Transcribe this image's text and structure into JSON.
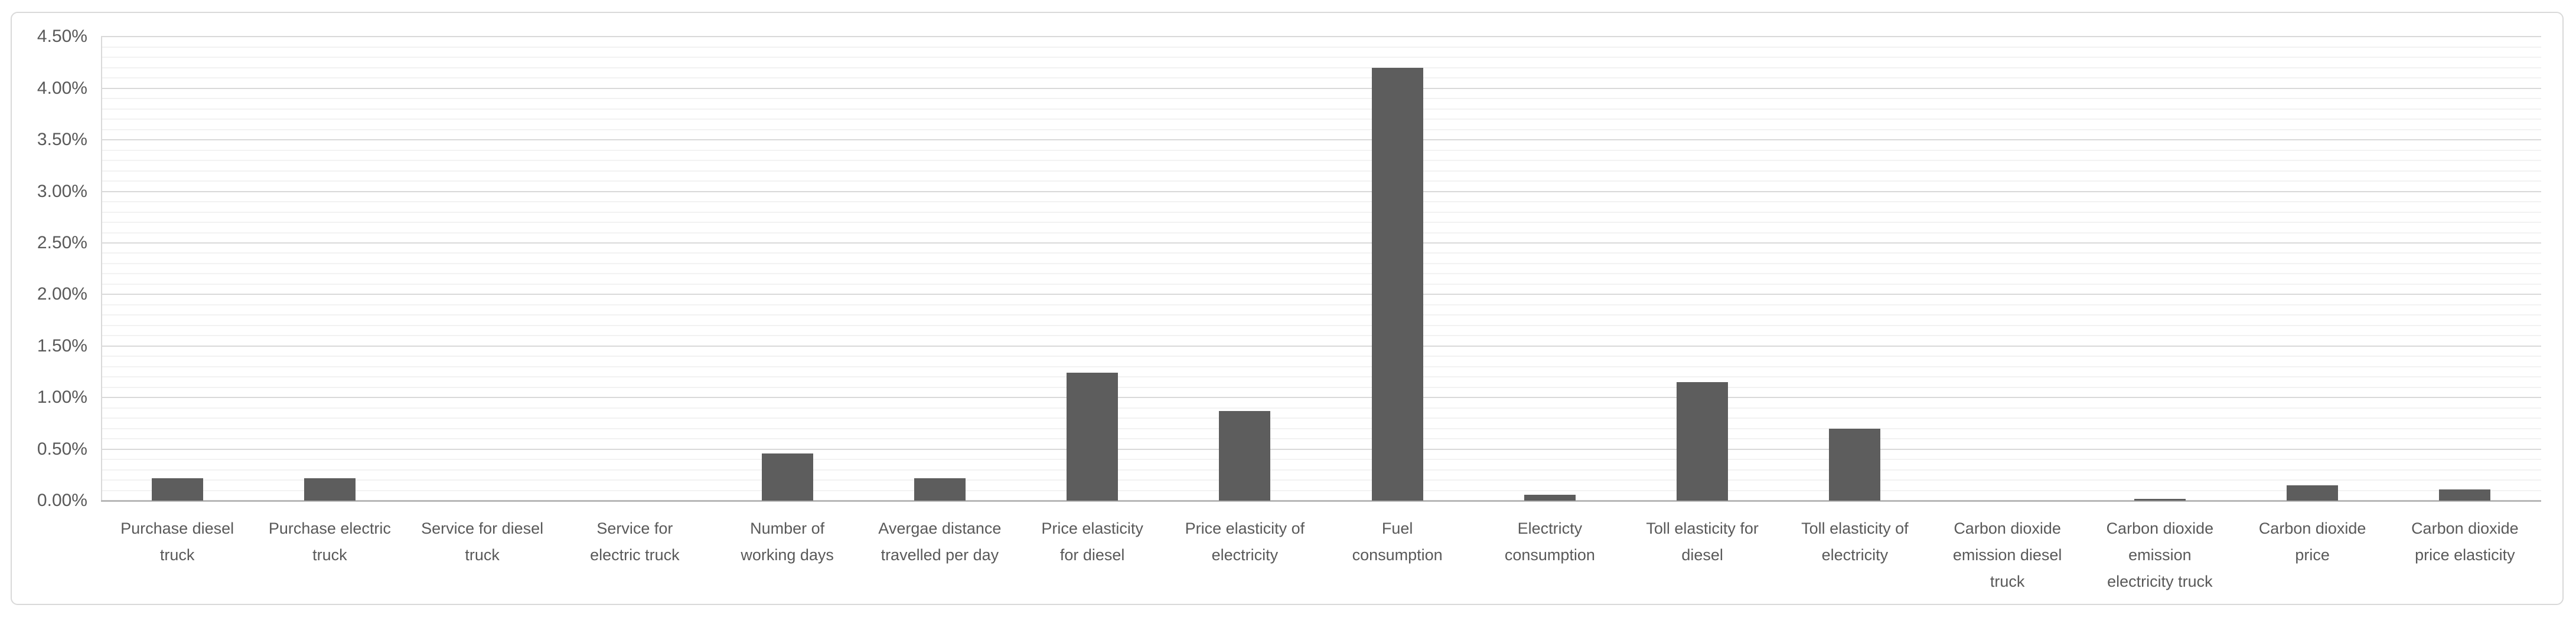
{
  "chart_data": {
    "type": "bar",
    "title": "",
    "xlabel": "",
    "ylabel": "",
    "legend": "none",
    "grid": "major+minor horizontal",
    "value_unit": "%",
    "ylim": [
      0,
      4.5
    ],
    "y_major_step": 0.5,
    "y_minor_step": 0.1,
    "y_tick_labels": [
      "0.00%",
      "0.50%",
      "1.00%",
      "1.50%",
      "2.00%",
      "2.50%",
      "3.00%",
      "3.50%",
      "4.00%",
      "4.50%"
    ],
    "categories": [
      "Purchase diesel truck",
      "Purchase electric truck",
      "Service for diesel truck",
      "Service for electric truck",
      "Number of working days",
      "Avergae distance travelled per day",
      "Price elasticity for diesel",
      "Price elasticity of electricity",
      "Fuel consumption",
      "Electricty consumption",
      "Toll elasticity for diesel",
      "Toll elasticity of electricity",
      "Carbon dioxide emission diesel truck",
      "Carbon dioxide emission electricity truck",
      "Carbon dioxide price",
      "Carbon dioxide price elasticity"
    ],
    "category_label_lines": [
      [
        "Purchase diesel",
        "truck"
      ],
      [
        "Purchase electric",
        "truck"
      ],
      [
        "Service for diesel",
        "truck"
      ],
      [
        "Service for",
        "electric truck"
      ],
      [
        "Number of",
        "working days"
      ],
      [
        "Avergae distance",
        "travelled per day"
      ],
      [
        "Price elasticity",
        "for diesel"
      ],
      [
        "Price elasticity of",
        "electricity"
      ],
      [
        "Fuel",
        "consumption"
      ],
      [
        "Electricty",
        "consumption"
      ],
      [
        "Toll elasticity for",
        "diesel"
      ],
      [
        "Toll elasticity of",
        "electricity"
      ],
      [
        "Carbon dioxide",
        "emission diesel",
        "truck"
      ],
      [
        "Carbon dioxide",
        "emission",
        "electricity truck"
      ],
      [
        "Carbon dioxide",
        "price"
      ],
      [
        "Carbon dioxide",
        "price elasticity"
      ]
    ],
    "values": [
      0.22,
      0.22,
      0.0,
      0.0,
      0.46,
      0.22,
      1.24,
      0.87,
      4.2,
      0.06,
      1.15,
      0.7,
      0.0,
      0.02,
      0.15,
      0.11
    ]
  },
  "colors": {
    "bar": "#5d5d5d",
    "major_gridline": "#d9d9d9",
    "minor_gridline": "#f2f2f2",
    "axis_line": "#b7b7b7",
    "tick_label": "#595959",
    "frame_border": "#d9d9d9",
    "background": "#ffffff"
  }
}
